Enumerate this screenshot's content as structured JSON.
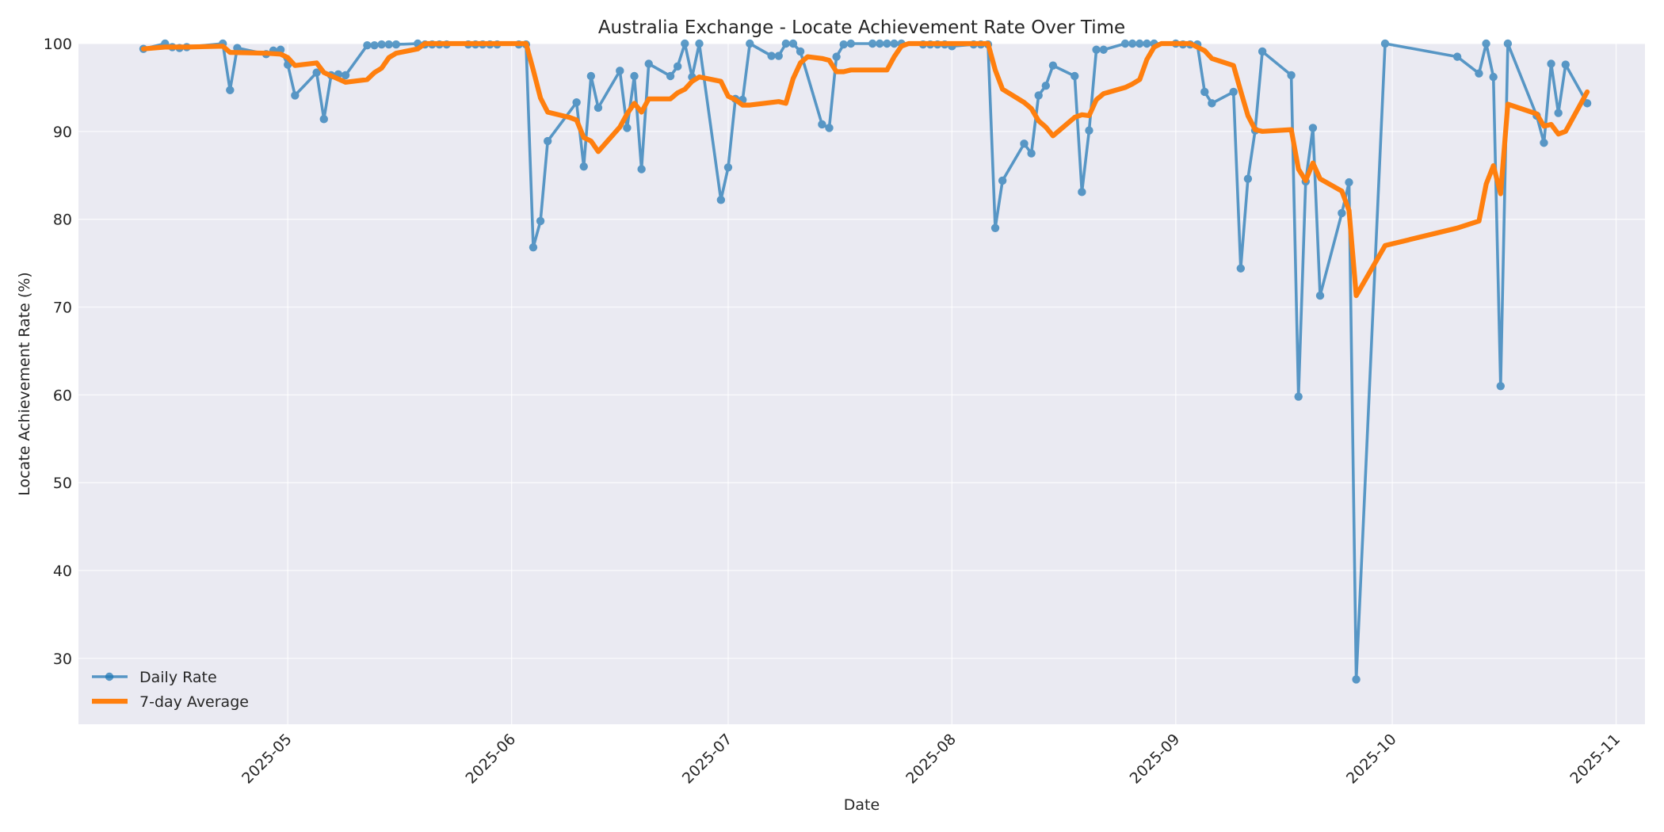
{
  "chart_data": {
    "type": "line",
    "title": "Australia Exchange - Locate Achievement Rate Over Time",
    "xlabel": "Date",
    "ylabel": "Locate Achievement Rate (%)",
    "ylim": [
      22.5,
      100
    ],
    "xlim": [
      "2025-04-02",
      "2025-11-05"
    ],
    "yticks": [
      30,
      40,
      50,
      60,
      70,
      80,
      90,
      100
    ],
    "xticks": [
      "2025-05",
      "2025-06",
      "2025-07",
      "2025-08",
      "2025-09",
      "2025-10",
      "2025-11"
    ],
    "grid": true,
    "legend_position": "lower left",
    "background": "#eaeaf2",
    "series": [
      {
        "name": "Daily Rate",
        "color": "#1f77b4",
        "style": "line-with-markers",
        "points": [
          [
            "2025-04-11",
            99.4
          ],
          [
            "2025-04-14",
            100
          ],
          [
            "2025-04-15",
            99.6
          ],
          [
            "2025-04-16",
            99.5
          ],
          [
            "2025-04-17",
            99.6
          ],
          [
            "2025-04-22",
            100
          ],
          [
            "2025-04-23",
            94.7
          ],
          [
            "2025-04-24",
            99.5
          ],
          [
            "2025-04-28",
            98.8
          ],
          [
            "2025-04-29",
            99.2
          ],
          [
            "2025-04-30",
            99.3
          ],
          [
            "2025-05-01",
            97.6
          ],
          [
            "2025-05-02",
            94.1
          ],
          [
            "2025-05-05",
            96.7
          ],
          [
            "2025-05-06",
            91.4
          ],
          [
            "2025-05-07",
            96.4
          ],
          [
            "2025-05-08",
            96.5
          ],
          [
            "2025-05-09",
            96.4
          ],
          [
            "2025-05-12",
            99.8
          ],
          [
            "2025-05-13",
            99.8
          ],
          [
            "2025-05-14",
            99.9
          ],
          [
            "2025-05-15",
            99.9
          ],
          [
            "2025-05-16",
            99.9
          ],
          [
            "2025-05-19",
            100
          ],
          [
            "2025-05-20",
            99.9
          ],
          [
            "2025-05-21",
            99.9
          ],
          [
            "2025-05-22",
            99.9
          ],
          [
            "2025-05-23",
            99.9
          ],
          [
            "2025-05-26",
            99.9
          ],
          [
            "2025-05-27",
            99.9
          ],
          [
            "2025-05-28",
            99.9
          ],
          [
            "2025-05-29",
            99.9
          ],
          [
            "2025-05-30",
            99.9
          ],
          [
            "2025-06-02",
            99.9
          ],
          [
            "2025-06-03",
            99.9
          ],
          [
            "2025-06-04",
            76.8
          ],
          [
            "2025-06-05",
            79.8
          ],
          [
            "2025-06-06",
            88.9
          ],
          [
            "2025-06-10",
            93.3
          ],
          [
            "2025-06-11",
            86.0
          ],
          [
            "2025-06-12",
            96.3
          ],
          [
            "2025-06-13",
            92.7
          ],
          [
            "2025-06-16",
            96.9
          ],
          [
            "2025-06-17",
            90.4
          ],
          [
            "2025-06-18",
            96.3
          ],
          [
            "2025-06-19",
            85.7
          ],
          [
            "2025-06-20",
            97.7
          ],
          [
            "2025-06-23",
            96.3
          ],
          [
            "2025-06-24",
            97.4
          ],
          [
            "2025-06-25",
            100
          ],
          [
            "2025-06-26",
            96.2
          ],
          [
            "2025-06-27",
            100
          ],
          [
            "2025-06-30",
            82.2
          ],
          [
            "2025-07-01",
            85.9
          ],
          [
            "2025-07-02",
            93.7
          ],
          [
            "2025-07-03",
            93.6
          ],
          [
            "2025-07-04",
            100
          ],
          [
            "2025-07-07",
            98.6
          ],
          [
            "2025-07-08",
            98.6
          ],
          [
            "2025-07-09",
            100
          ],
          [
            "2025-07-10",
            100
          ],
          [
            "2025-07-11",
            99.1
          ],
          [
            "2025-07-14",
            90.8
          ],
          [
            "2025-07-15",
            90.4
          ],
          [
            "2025-07-16",
            98.5
          ],
          [
            "2025-07-17",
            99.9
          ],
          [
            "2025-07-18",
            100
          ],
          [
            "2025-07-21",
            100
          ],
          [
            "2025-07-22",
            100
          ],
          [
            "2025-07-23",
            100
          ],
          [
            "2025-07-24",
            100
          ],
          [
            "2025-07-25",
            100
          ],
          [
            "2025-07-28",
            99.9
          ],
          [
            "2025-07-29",
            99.9
          ],
          [
            "2025-07-30",
            99.9
          ],
          [
            "2025-07-31",
            99.9
          ],
          [
            "2025-08-01",
            99.7
          ],
          [
            "2025-08-04",
            99.9
          ],
          [
            "2025-08-05",
            99.9
          ],
          [
            "2025-08-06",
            99.9
          ],
          [
            "2025-08-07",
            79.0
          ],
          [
            "2025-08-08",
            84.4
          ],
          [
            "2025-08-11",
            88.6
          ],
          [
            "2025-08-12",
            87.5
          ],
          [
            "2025-08-13",
            94.1
          ],
          [
            "2025-08-14",
            95.2
          ],
          [
            "2025-08-15",
            97.5
          ],
          [
            "2025-08-18",
            96.3
          ],
          [
            "2025-08-19",
            83.1
          ],
          [
            "2025-08-20",
            90.1
          ],
          [
            "2025-08-21",
            99.3
          ],
          [
            "2025-08-22",
            99.3
          ],
          [
            "2025-08-25",
            100
          ],
          [
            "2025-08-26",
            100
          ],
          [
            "2025-08-27",
            100
          ],
          [
            "2025-08-28",
            100
          ],
          [
            "2025-08-29",
            100
          ],
          [
            "2025-09-01",
            100
          ],
          [
            "2025-09-02",
            99.9
          ],
          [
            "2025-09-03",
            99.9
          ],
          [
            "2025-09-04",
            99.9
          ],
          [
            "2025-09-05",
            94.5
          ],
          [
            "2025-09-06",
            93.2
          ],
          [
            "2025-09-09",
            94.5
          ],
          [
            "2025-09-10",
            74.4
          ],
          [
            "2025-09-11",
            84.6
          ],
          [
            "2025-09-12",
            90.1
          ],
          [
            "2025-09-13",
            99.1
          ],
          [
            "2025-09-17",
            96.4
          ],
          [
            "2025-09-18",
            59.8
          ],
          [
            "2025-09-19",
            84.3
          ],
          [
            "2025-09-20",
            90.4
          ],
          [
            "2025-09-21",
            71.3
          ],
          [
            "2025-09-24",
            80.7
          ],
          [
            "2025-09-25",
            84.2
          ],
          [
            "2025-09-26",
            27.6
          ],
          [
            "2025-09-30",
            100
          ],
          [
            "2025-10-10",
            98.5
          ],
          [
            "2025-10-13",
            96.6
          ],
          [
            "2025-10-14",
            100
          ],
          [
            "2025-10-15",
            96.2
          ],
          [
            "2025-10-16",
            61.0
          ],
          [
            "2025-10-17",
            100
          ],
          [
            "2025-10-21",
            91.8
          ],
          [
            "2025-10-22",
            88.7
          ],
          [
            "2025-10-23",
            97.7
          ],
          [
            "2025-10-24",
            92.1
          ],
          [
            "2025-10-25",
            97.6
          ],
          [
            "2025-10-28",
            93.2
          ]
        ]
      },
      {
        "name": "7-day Average",
        "color": "#ff7f0e",
        "style": "thick-line",
        "points": [
          [
            "2025-04-11",
            99.4
          ],
          [
            "2025-04-14",
            99.6
          ],
          [
            "2025-04-17",
            99.6
          ],
          [
            "2025-04-22",
            99.7
          ],
          [
            "2025-04-23",
            99.0
          ],
          [
            "2025-04-28",
            98.9
          ],
          [
            "2025-04-30",
            98.8
          ],
          [
            "2025-05-01",
            98.4
          ],
          [
            "2025-05-02",
            97.5
          ],
          [
            "2025-05-05",
            97.8
          ],
          [
            "2025-05-06",
            96.7
          ],
          [
            "2025-05-09",
            95.6
          ],
          [
            "2025-05-12",
            95.9
          ],
          [
            "2025-05-13",
            96.7
          ],
          [
            "2025-05-14",
            97.2
          ],
          [
            "2025-05-15",
            98.4
          ],
          [
            "2025-05-16",
            98.9
          ],
          [
            "2025-05-19",
            99.4
          ],
          [
            "2025-05-20",
            100
          ],
          [
            "2025-06-03",
            100
          ],
          [
            "2025-06-04",
            97.0
          ],
          [
            "2025-06-05",
            93.8
          ],
          [
            "2025-06-06",
            92.2
          ],
          [
            "2025-06-09",
            91.6
          ],
          [
            "2025-06-10",
            91.3
          ],
          [
            "2025-06-11",
            89.3
          ],
          [
            "2025-06-12",
            88.9
          ],
          [
            "2025-06-13",
            87.7
          ],
          [
            "2025-06-16",
            90.5
          ],
          [
            "2025-06-17",
            92.0
          ],
          [
            "2025-06-18",
            93.2
          ],
          [
            "2025-06-19",
            92.2
          ],
          [
            "2025-06-20",
            93.7
          ],
          [
            "2025-06-23",
            93.7
          ],
          [
            "2025-06-24",
            94.4
          ],
          [
            "2025-06-25",
            94.8
          ],
          [
            "2025-06-26",
            95.7
          ],
          [
            "2025-06-27",
            96.2
          ],
          [
            "2025-06-30",
            95.7
          ],
          [
            "2025-07-01",
            94.0
          ],
          [
            "2025-07-02",
            93.6
          ],
          [
            "2025-07-03",
            93.0
          ],
          [
            "2025-07-04",
            93.0
          ],
          [
            "2025-07-08",
            93.4
          ],
          [
            "2025-07-09",
            93.2
          ],
          [
            "2025-07-10",
            96.0
          ],
          [
            "2025-07-11",
            97.8
          ],
          [
            "2025-07-12",
            98.5
          ],
          [
            "2025-07-14",
            98.3
          ],
          [
            "2025-07-15",
            98.1
          ],
          [
            "2025-07-16",
            96.8
          ],
          [
            "2025-07-17",
            96.8
          ],
          [
            "2025-07-18",
            97.0
          ],
          [
            "2025-07-22",
            97.0
          ],
          [
            "2025-07-23",
            97.0
          ],
          [
            "2025-07-24",
            98.5
          ],
          [
            "2025-07-25",
            99.7
          ],
          [
            "2025-07-26",
            100
          ],
          [
            "2025-08-06",
            100
          ],
          [
            "2025-08-07",
            97.0
          ],
          [
            "2025-08-08",
            94.8
          ],
          [
            "2025-08-11",
            93.3
          ],
          [
            "2025-08-12",
            92.6
          ],
          [
            "2025-08-13",
            91.2
          ],
          [
            "2025-08-14",
            90.5
          ],
          [
            "2025-08-15",
            89.5
          ],
          [
            "2025-08-18",
            91.6
          ],
          [
            "2025-08-19",
            91.9
          ],
          [
            "2025-08-20",
            91.8
          ],
          [
            "2025-08-21",
            93.6
          ],
          [
            "2025-08-22",
            94.3
          ],
          [
            "2025-08-25",
            95.0
          ],
          [
            "2025-08-26",
            95.4
          ],
          [
            "2025-08-27",
            95.9
          ],
          [
            "2025-08-28",
            98.2
          ],
          [
            "2025-08-29",
            99.6
          ],
          [
            "2025-08-30",
            100
          ],
          [
            "2025-09-03",
            100
          ],
          [
            "2025-09-05",
            99.2
          ],
          [
            "2025-09-06",
            98.3
          ],
          [
            "2025-09-09",
            97.5
          ],
          [
            "2025-09-10",
            94.6
          ],
          [
            "2025-09-11",
            91.8
          ],
          [
            "2025-09-12",
            90.2
          ],
          [
            "2025-09-13",
            90.0
          ],
          [
            "2025-09-17",
            90.2
          ],
          [
            "2025-09-18",
            85.7
          ],
          [
            "2025-09-19",
            84.4
          ],
          [
            "2025-09-20",
            86.4
          ],
          [
            "2025-09-21",
            84.6
          ],
          [
            "2025-09-24",
            83.2
          ],
          [
            "2025-09-25",
            81.0
          ],
          [
            "2025-09-26",
            71.3
          ],
          [
            "2025-09-30",
            77.0
          ],
          [
            "2025-10-10",
            79.0
          ],
          [
            "2025-10-13",
            79.8
          ],
          [
            "2025-10-14",
            84.0
          ],
          [
            "2025-10-15",
            86.1
          ],
          [
            "2025-10-16",
            82.9
          ],
          [
            "2025-10-17",
            93.1
          ],
          [
            "2025-10-21",
            92.0
          ],
          [
            "2025-10-22",
            90.6
          ],
          [
            "2025-10-23",
            90.8
          ],
          [
            "2025-10-24",
            89.7
          ],
          [
            "2025-10-25",
            90.0
          ],
          [
            "2025-10-28",
            94.5
          ]
        ]
      }
    ]
  }
}
